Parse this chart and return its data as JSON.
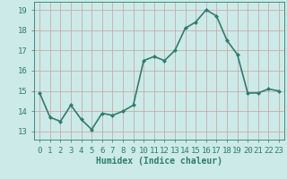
{
  "x": [
    0,
    1,
    2,
    3,
    4,
    5,
    6,
    7,
    8,
    9,
    10,
    11,
    12,
    13,
    14,
    15,
    16,
    17,
    18,
    19,
    20,
    21,
    22,
    23
  ],
  "y": [
    14.9,
    13.7,
    13.5,
    14.3,
    13.6,
    13.1,
    13.9,
    13.8,
    14.0,
    14.3,
    16.5,
    16.7,
    16.5,
    17.0,
    18.1,
    18.4,
    19.0,
    18.7,
    17.5,
    16.8,
    14.9,
    14.9,
    15.1,
    15.0
  ],
  "line_color": "#2e7d6e",
  "marker": "D",
  "marker_size": 2,
  "bg_color": "#cceae8",
  "grid_color_major": "#b0c8c8",
  "grid_color_minor": "#d4b8b8",
  "xlabel": "Humidex (Indice chaleur)",
  "ylim": [
    12.6,
    19.4
  ],
  "yticks": [
    13,
    14,
    15,
    16,
    17,
    18,
    19
  ],
  "xticks": [
    0,
    1,
    2,
    3,
    4,
    5,
    6,
    7,
    8,
    9,
    10,
    11,
    12,
    13,
    14,
    15,
    16,
    17,
    18,
    19,
    20,
    21,
    22,
    23
  ],
  "xlabel_fontsize": 7,
  "tick_fontsize": 6.5,
  "line_width": 1.2
}
